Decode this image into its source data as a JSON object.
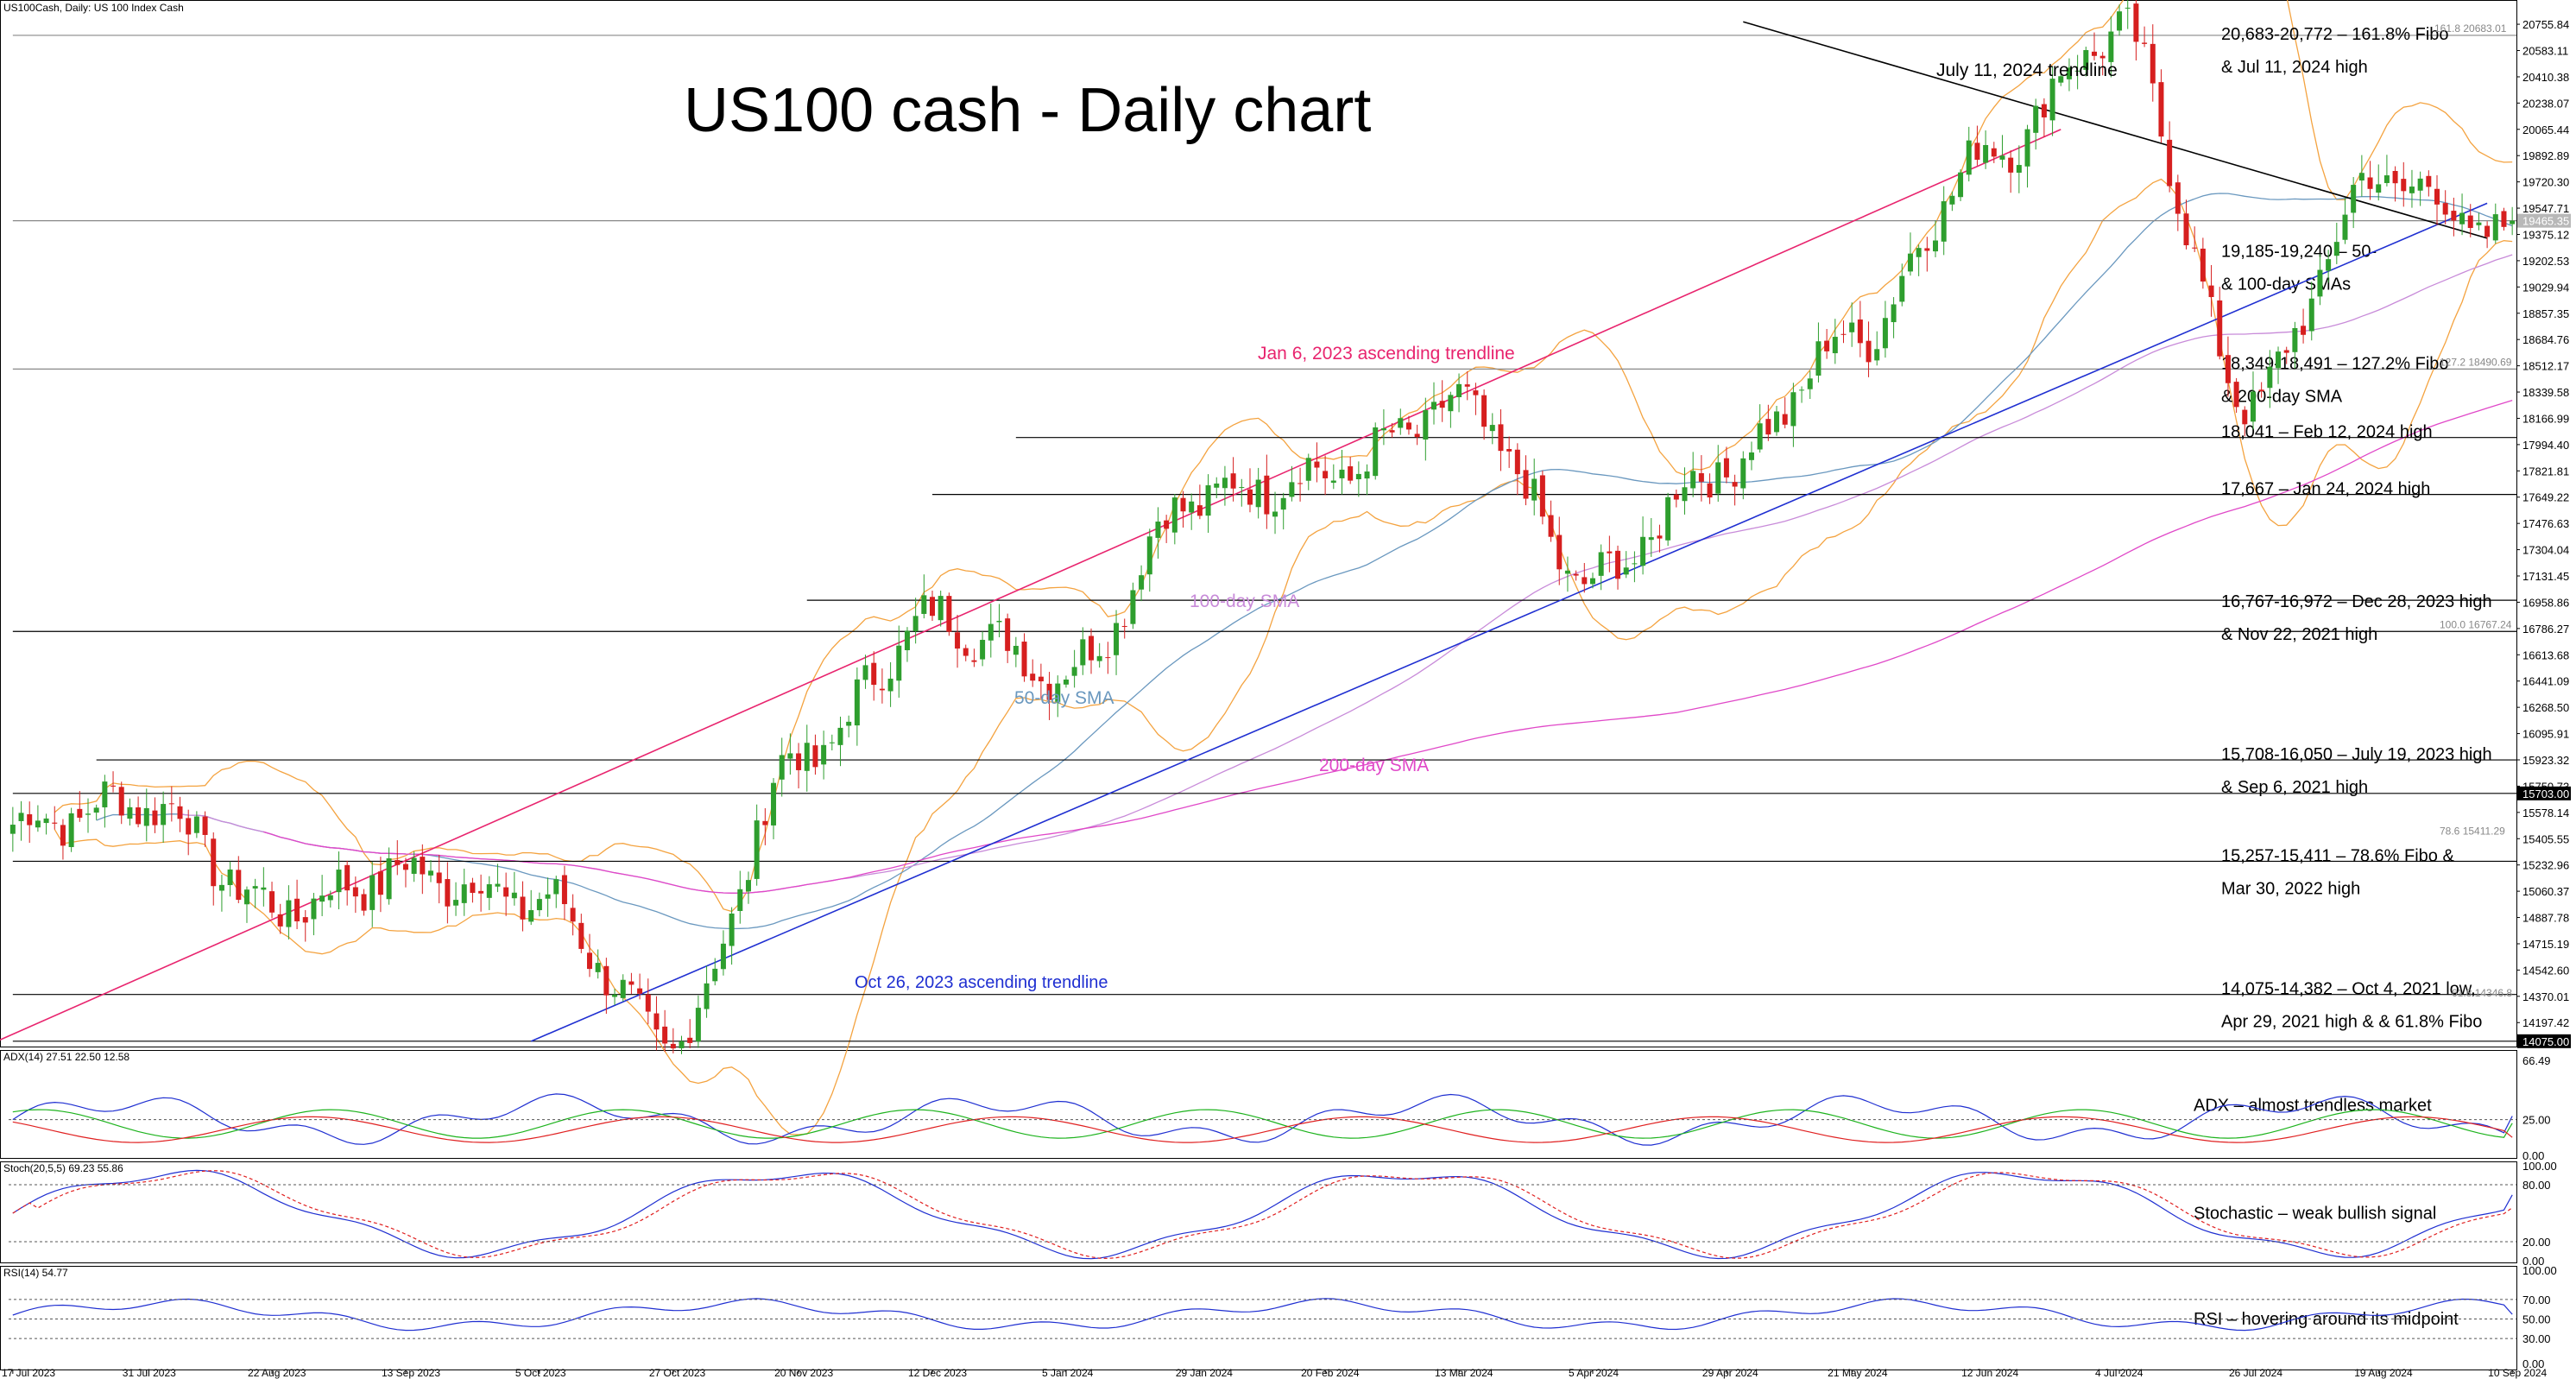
{
  "header": {
    "symbol_info": "US100Cash, Daily:  US 100 Index Cash",
    "title": "US100 cash - Daily chart"
  },
  "colors": {
    "price_up": "#2e9e2e",
    "price_down": "#d61f1f",
    "bollinger": "#f4a340",
    "sma50": "#6a98bf",
    "sma100": "#c88bd9",
    "sma200": "#e048c8",
    "trend_pink": "#e8246e",
    "trend_blue": "#1f2fd1",
    "trend_black": "#000000",
    "adx": "#1f2fd1",
    "plus_di": "#1db31d",
    "minus_di": "#e02020",
    "stoch_main": "#1f2fd1",
    "stoch_signal": "#e02020",
    "rsi": "#1f2fd1"
  },
  "chart_data": [
    {
      "type": "line",
      "name": "price",
      "x": [
        "17 Jul 2023",
        "31 Jul 2023",
        "22 Aug 2023",
        "13 Sep 2023",
        "5 Oct 2023",
        "27 Oct 2023",
        "20 Nov 2023",
        "12 Dec 2023",
        "5 Jan 2024",
        "29 Jan 2024",
        "20 Feb 2024",
        "13 Mar 2024",
        "5 Apr 2024",
        "29 Apr 2024",
        "21 May 2024",
        "12 Jun 2024",
        "4 Jul 2024",
        "26 Jul 2024",
        "19 Aug 2024",
        "10 Sep 2024"
      ],
      "y_close": [
        15500,
        15650,
        14950,
        15180,
        15000,
        14075,
        15950,
        16850,
        16500,
        17650,
        17800,
        18250,
        17100,
        17850,
        18700,
        19900,
        20700,
        18300,
        19750,
        19350
      ],
      "y_axis_ticks": [
        "20755.84",
        "20583.11",
        "20410.38",
        "20238.07",
        "20065.44",
        "19892.89",
        "19720.30",
        "19547.71",
        "19375.12",
        "19202.53",
        "19029.94",
        "18857.35",
        "18684.76",
        "18512.17",
        "18339.58",
        "18166.99",
        "17994.40",
        "17821.81",
        "17649.22",
        "17476.63",
        "17304.04",
        "17131.45",
        "16958.86",
        "16786.27",
        "16613.68",
        "16441.09",
        "16268.50",
        "16095.91",
        "15923.32",
        "15750.73",
        "15578.14",
        "15405.55",
        "15232.96",
        "15060.37",
        "14887.78",
        "14715.19",
        "14542.60",
        "14370.01",
        "14197.42"
      ],
      "ylim": [
        14075,
        20772
      ],
      "price_badges": [
        "19465.35",
        "15703.00",
        "14075.00"
      ],
      "fibo_labels": [
        "161.8 20683.01",
        "127.2 18490.69",
        "100.0 16767.24",
        "78.6 15411.29",
        "61.8 14346.8"
      ],
      "sma_labels": [
        "100-day SMA",
        "50-day SMA",
        "200-day SMA"
      ],
      "trendline_labels": [
        "July 11, 2024 trendline",
        "Jan 6, 2023 ascending trendline",
        "Oct 26, 2023 ascending trendline"
      ],
      "levels": [
        {
          "value": 20683,
          "text": "20,683-20,772 – 161.8% Fibo",
          "text2": "& Jul 11, 2024 high"
        },
        {
          "value": 19465,
          "text": "19,185-19,240 – 50-",
          "text2": "& 100-day SMAs"
        },
        {
          "value": 18491,
          "text": "18,349-18,491 – 127.2% Fibo",
          "text2": "& 200-day SMA"
        },
        {
          "value": 18041,
          "text": "18,041 – Feb 12, 2024 high",
          "text2": ""
        },
        {
          "value": 17667,
          "text": "17,667 – Jan 24, 2024 high",
          "text2": ""
        },
        {
          "value": 16972,
          "text": "16,767-16,972 – Dec 28, 2023 high",
          "text2": "& Nov 22, 2021 high"
        },
        {
          "value": 16767,
          "text": "",
          "text2": ""
        },
        {
          "value": 15923,
          "text": "15,708-16,050 – July 19, 2023 high",
          "text2": "& Sep 6, 2021 high"
        },
        {
          "value": 15703,
          "text": "",
          "text2": ""
        },
        {
          "value": 15257,
          "text": "15,257-15,411 – 78.6% Fibo &",
          "text2": "Mar 30, 2022 high"
        },
        {
          "value": 14382,
          "text": "14,075-14,382 – Oct 4, 2021 low,",
          "text2": "Apr 29, 2021 high & & 61.8% Fibo"
        },
        {
          "value": 14075,
          "text": "",
          "text2": ""
        }
      ]
    },
    {
      "type": "line",
      "name": "ADX(14)",
      "header": "ADX(14) 27.51 22.50 12.58",
      "values": {
        "adx": 27.51,
        "plus_di": 22.5,
        "minus_di": 12.58
      },
      "axis_ticks": [
        "66.49",
        "25.00",
        "0.00"
      ],
      "annotation": "ADX – almost trendless market"
    },
    {
      "type": "line",
      "name": "Stoch(20,5,5)",
      "header": "Stoch(20,5,5) 69.23 55.86",
      "values": {
        "main": 69.23,
        "signal": 55.86
      },
      "axis_ticks": [
        "100.00",
        "80.00",
        "20.00",
        "0.00"
      ],
      "annotation": "Stochastic – weak bullish signal"
    },
    {
      "type": "line",
      "name": "RSI(14)",
      "header": "RSI(14) 54.77",
      "values": {
        "rsi": 54.77
      },
      "axis_ticks": [
        "100.00",
        "70.00",
        "50.00",
        "30.00",
        "0.00"
      ],
      "annotation": "RSI – hovering around its midpoint"
    }
  ]
}
